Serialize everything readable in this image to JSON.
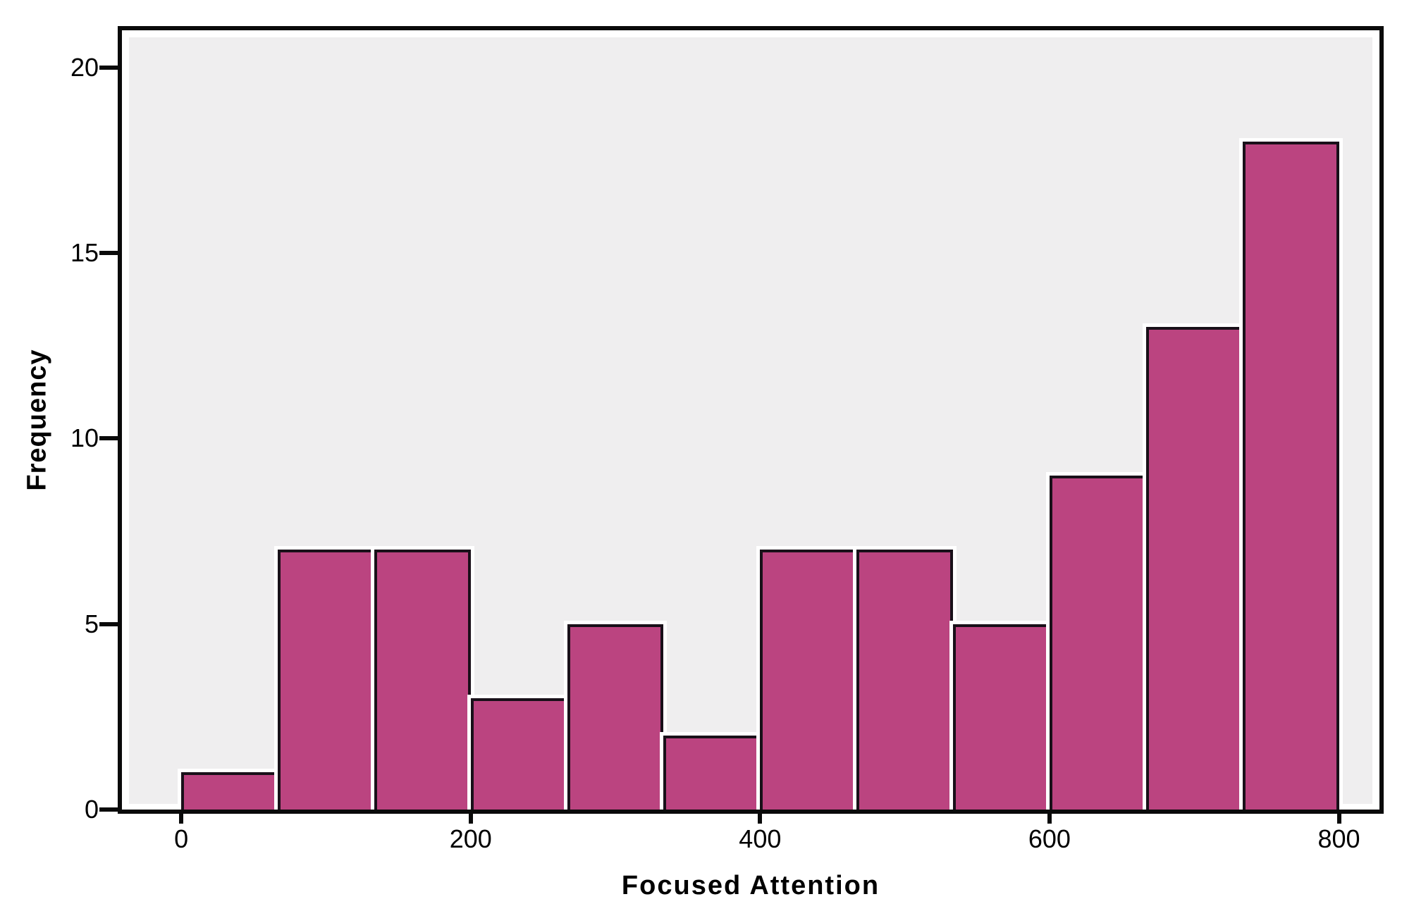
{
  "chart_data": {
    "type": "bar",
    "subtype": "histogram",
    "title": "",
    "xlabel": "Focused Attention",
    "ylabel": "Frequency",
    "bin_start": 0,
    "bin_width": 66.667,
    "bin_edges": [
      0,
      66.7,
      133.3,
      200,
      266.7,
      333.3,
      400,
      466.7,
      533.3,
      600,
      666.7,
      733.3,
      800
    ],
    "values": [
      1,
      7,
      7,
      3,
      5,
      2,
      7,
      7,
      5,
      9,
      13,
      18
    ],
    "x_ticks": [
      0,
      200,
      400,
      600,
      800
    ],
    "y_ticks": [
      0,
      5,
      10,
      15,
      20
    ],
    "xlim": [
      -41,
      828
    ],
    "ylim": [
      0,
      21
    ],
    "grid": false,
    "legend": false
  },
  "colors": {
    "bar_fill": "#bb4480",
    "bar_border": "#191019",
    "bar_halo": "#ffffff",
    "plot_background": "#efeeef",
    "frame": "#0a0a0a",
    "page_background": "#ffffff",
    "text": "#000000"
  }
}
